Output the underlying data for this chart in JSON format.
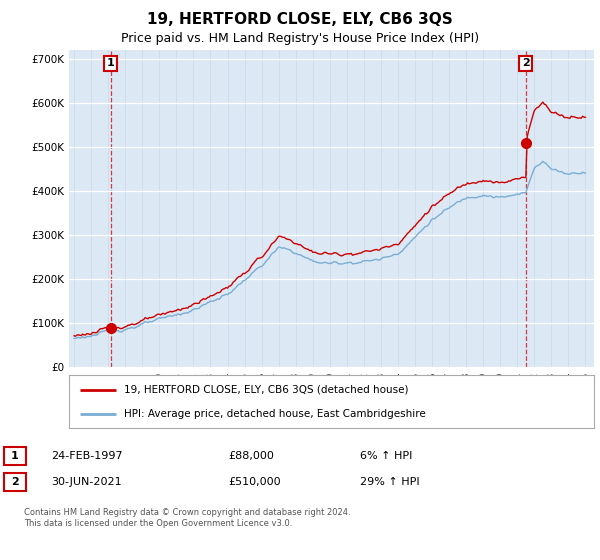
{
  "title": "19, HERTFORD CLOSE, ELY, CB6 3QS",
  "subtitle": "Price paid vs. HM Land Registry's House Price Index (HPI)",
  "ylim": [
    0,
    720000
  ],
  "yticks": [
    0,
    100000,
    200000,
    300000,
    400000,
    500000,
    600000,
    700000
  ],
  "ytick_labels": [
    "£0",
    "£100K",
    "£200K",
    "£300K",
    "£400K",
    "£500K",
    "£600K",
    "£700K"
  ],
  "xlim_start": 1994.7,
  "xlim_end": 2025.5,
  "background_color": "#dce9f5",
  "outer_bg_color": "#ffffff",
  "line1_color": "#cc0000",
  "line2_color": "#7aadd4",
  "sale1_year": 1997.15,
  "sale1_price": 88000,
  "sale2_year": 2021.5,
  "sale2_price": 510000,
  "annotation1_label": "1",
  "annotation2_label": "2",
  "legend_line1": "19, HERTFORD CLOSE, ELY, CB6 3QS (detached house)",
  "legend_line2": "HPI: Average price, detached house, East Cambridgeshire",
  "table_row1": [
    "1",
    "24-FEB-1997",
    "£88,000",
    "6% ↑ HPI"
  ],
  "table_row2": [
    "2",
    "30-JUN-2021",
    "£510,000",
    "29% ↑ HPI"
  ],
  "footer": "Contains HM Land Registry data © Crown copyright and database right 2024.\nThis data is licensed under the Open Government Licence v3.0.",
  "title_fontsize": 11,
  "subtitle_fontsize": 9,
  "tick_fontsize": 7.5,
  "dashed_line_color": "#cc0000"
}
